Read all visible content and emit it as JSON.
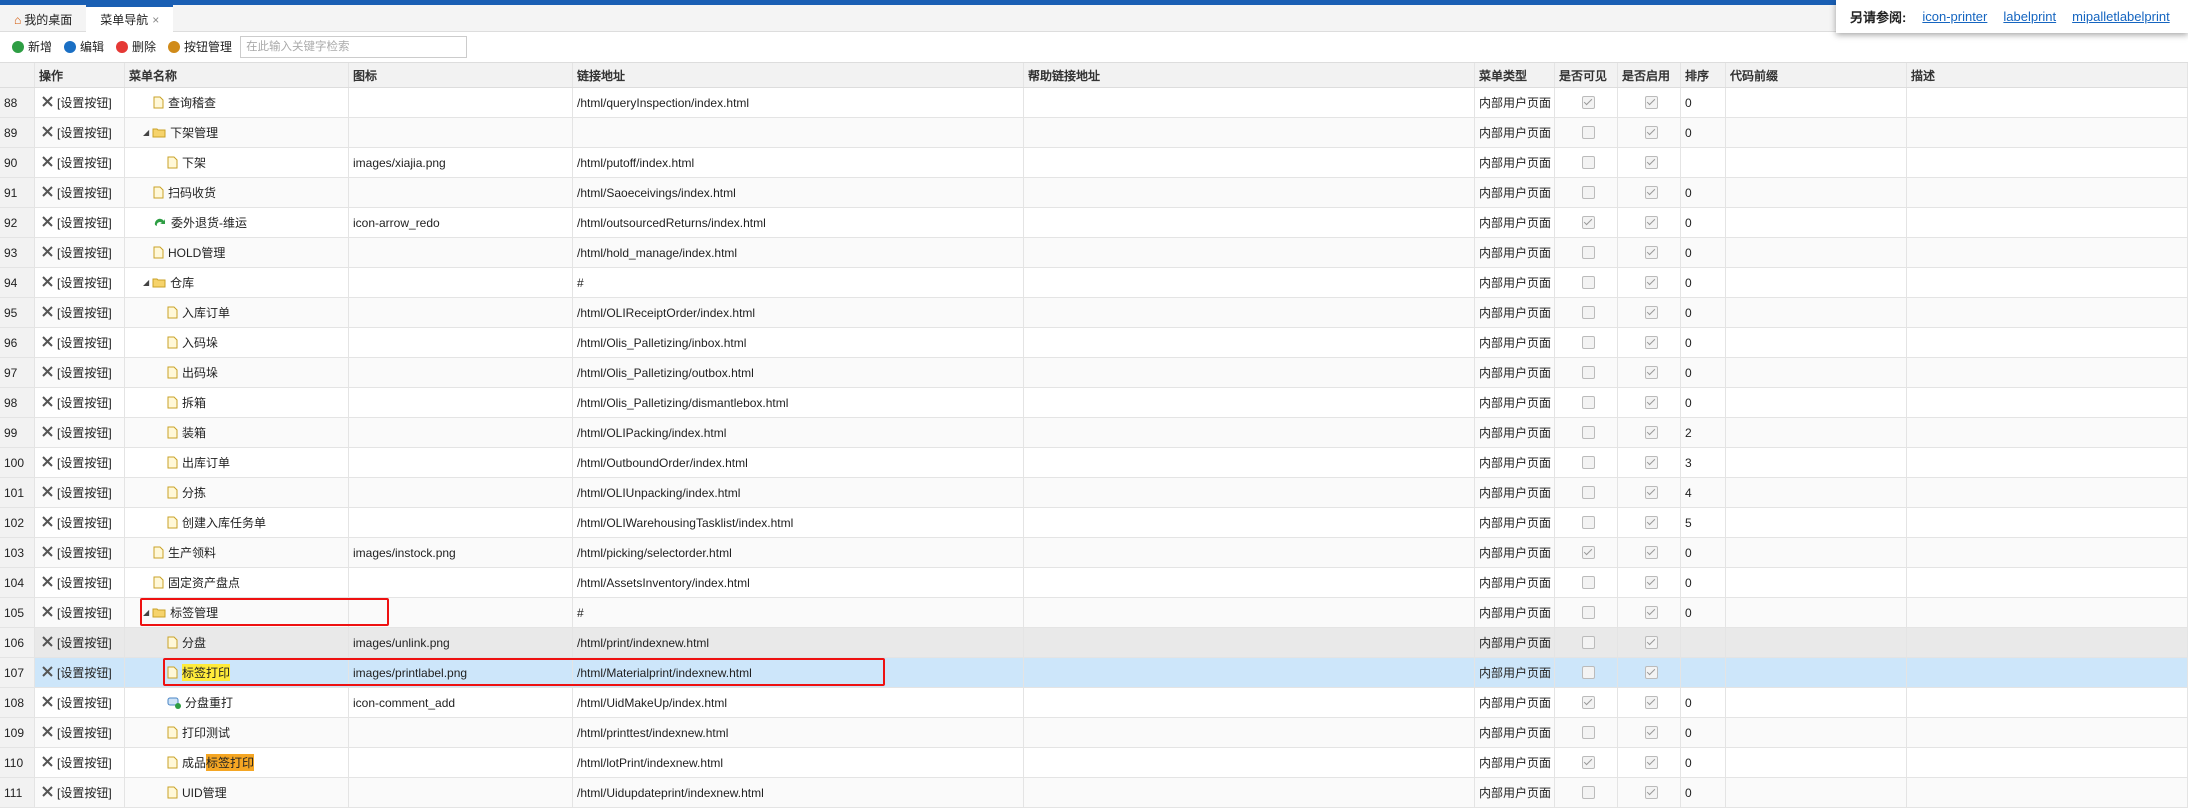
{
  "tabs": [
    {
      "label": "我的桌面"
    },
    {
      "label": "菜单导航",
      "close": "×"
    }
  ],
  "toolbar": {
    "buttons": [
      "新增",
      "编辑",
      "删除",
      "按钮管理"
    ],
    "search_placeholder": "在此输入关键字检索"
  },
  "see_also": {
    "label": "另请参阅:",
    "links": [
      "icon-printer",
      "labelprint",
      "mipalletlabelprint"
    ]
  },
  "table": {
    "headers": [
      "操作",
      "菜单名称",
      "图标",
      "链接地址",
      "帮助链接地址",
      "菜单类型",
      "是否可见",
      "是否启用",
      "排序",
      "代码前缀",
      "描述"
    ],
    "action_label": "[设置按钮]",
    "rows": [
      {
        "num": 88,
        "level": 1,
        "kind": "file",
        "name": "查询稽查",
        "link": "/html/queryInspection/index.html",
        "type": "内部用户页面",
        "visible": true,
        "enabled": true,
        "sort": 0
      },
      {
        "num": 89,
        "level": 1,
        "kind": "folder",
        "name": "下架管理",
        "type": "内部用户页面",
        "visible": false,
        "enabled": true,
        "sort": 0
      },
      {
        "num": 90,
        "level": 2,
        "kind": "file",
        "name": "下架",
        "icon": "images/xiajia.png",
        "link": "/html/putoff/index.html",
        "type": "内部用户页面",
        "visible": false,
        "enabled": true
      },
      {
        "num": 91,
        "level": 1,
        "kind": "file",
        "name": "扫码收货",
        "link": "/html/Saoeceivings/index.html",
        "type": "内部用户页面",
        "visible": false,
        "enabled": true,
        "sort": 0
      },
      {
        "num": 92,
        "level": 1,
        "kind": "redo",
        "name": "委外退货-维运",
        "icon": "icon-arrow_redo",
        "link": "/html/outsourcedReturns/index.html",
        "type": "内部用户页面",
        "visible": true,
        "enabled": true,
        "sort": 0
      },
      {
        "num": 93,
        "level": 1,
        "kind": "file",
        "name": "HOLD管理",
        "link": "/html/hold_manage/index.html",
        "type": "内部用户页面",
        "visible": false,
        "enabled": true,
        "sort": 0
      },
      {
        "num": 94,
        "level": 1,
        "kind": "folder",
        "name": "仓库",
        "link": "#",
        "type": "内部用户页面",
        "visible": false,
        "enabled": true,
        "sort": 0
      },
      {
        "num": 95,
        "level": 2,
        "kind": "file",
        "name": "入库订单",
        "link": "/html/OLIReceiptOrder/index.html",
        "type": "内部用户页面",
        "visible": false,
        "enabled": true,
        "sort": 0
      },
      {
        "num": 96,
        "level": 2,
        "kind": "file",
        "name": "入码垛",
        "link": "/html/Olis_Palletizing/inbox.html",
        "type": "内部用户页面",
        "visible": false,
        "enabled": true,
        "sort": 0
      },
      {
        "num": 97,
        "level": 2,
        "kind": "file",
        "name": "出码垛",
        "link": "/html/Olis_Palletizing/outbox.html",
        "type": "内部用户页面",
        "visible": false,
        "enabled": true,
        "sort": 0
      },
      {
        "num": 98,
        "level": 2,
        "kind": "file",
        "name": "拆箱",
        "link": "/html/Olis_Palletizing/dismantlebox.html",
        "type": "内部用户页面",
        "visible": false,
        "enabled": true,
        "sort": 0
      },
      {
        "num": 99,
        "level": 2,
        "kind": "file",
        "name": "装箱",
        "link": "/html/OLIPacking/index.html",
        "type": "内部用户页面",
        "visible": false,
        "enabled": true,
        "sort": 2
      },
      {
        "num": 100,
        "level": 2,
        "kind": "file",
        "name": "出库订单",
        "link": "/html/OutboundOrder/index.html",
        "type": "内部用户页面",
        "visible": false,
        "enabled": true,
        "sort": 3
      },
      {
        "num": 101,
        "level": 2,
        "kind": "file",
        "name": "分拣",
        "link": "/html/OLIUnpacking/index.html",
        "type": "内部用户页面",
        "visible": false,
        "enabled": true,
        "sort": 4
      },
      {
        "num": 102,
        "level": 2,
        "kind": "file",
        "name": "创建入库任务单",
        "link": "/html/OLIWarehousingTasklist/index.html",
        "type": "内部用户页面",
        "visible": false,
        "enabled": true,
        "sort": 5
      },
      {
        "num": 103,
        "level": 1,
        "kind": "file",
        "name": "生产领料",
        "icon": "images/instock.png",
        "link": "/html/picking/selectorder.html",
        "type": "内部用户页面",
        "visible": true,
        "enabled": true,
        "sort": 0
      },
      {
        "num": 104,
        "level": 1,
        "kind": "file",
        "name": "固定资产盘点",
        "link": "/html/AssetsInventory/index.html",
        "type": "内部用户页面",
        "visible": false,
        "enabled": true,
        "sort": 0
      },
      {
        "num": 105,
        "level": 1,
        "kind": "folder",
        "name": "标签管理",
        "link": "#",
        "type": "内部用户页面",
        "visible": false,
        "enabled": true,
        "sort": 0
      },
      {
        "num": 106,
        "level": 2,
        "kind": "file",
        "name": "分盘",
        "icon": "images/unlink.png",
        "link": "/html/print/indexnew.html",
        "type": "内部用户页面",
        "visible": false,
        "enabled": true,
        "hovered": true
      },
      {
        "num": 107,
        "level": 2,
        "kind": "file",
        "highlight": "标签打印",
        "icon": "images/printlabel.png",
        "link": "/html/Materialprint/indexnew.html",
        "type": "内部用户页面",
        "visible": false,
        "enabled": true,
        "selected": true
      },
      {
        "num": 108,
        "level": 2,
        "kind": "comment",
        "name": "分盘重打",
        "icon": "icon-comment_add",
        "link": "/html/UidMakeUp/index.html",
        "type": "内部用户页面",
        "visible": true,
        "enabled": true,
        "sort": 0
      },
      {
        "num": 109,
        "level": 2,
        "kind": "file",
        "name": "打印测试",
        "link": "/html/printtest/indexnew.html",
        "type": "内部用户页面",
        "visible": false,
        "enabled": true,
        "sort": 0
      },
      {
        "num": 110,
        "level": 2,
        "kind": "file",
        "name": "成品",
        "highlight": "标签打印",
        "link": "/html/lotPrint/indexnew.html",
        "type": "内部用户页面",
        "visible": true,
        "enabled": true,
        "sort": 0
      },
      {
        "num": 111,
        "level": 2,
        "kind": "file",
        "name": "UID管理",
        "link": "/html/Uidupdateprint/indexnew.html",
        "type": "内部用户页面",
        "visible": false,
        "enabled": true,
        "sort": 0
      }
    ]
  }
}
